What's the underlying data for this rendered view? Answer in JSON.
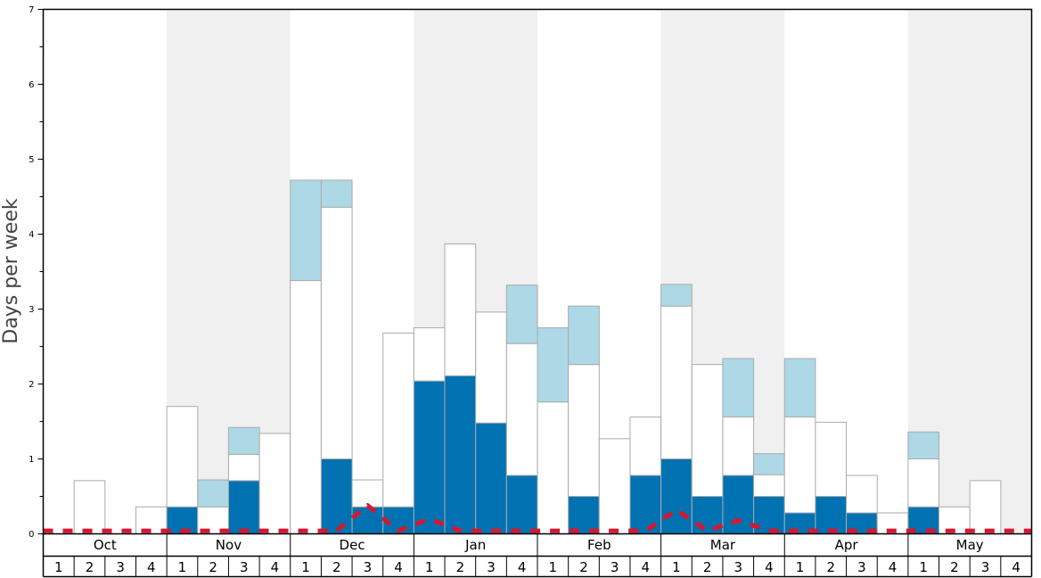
{
  "chart_data": {
    "type": "bar",
    "stacked": true,
    "ylabel": "Days per week",
    "ylim": [
      0,
      7
    ],
    "yticks": [
      "0",
      "1",
      "2",
      "3",
      "4",
      "5",
      "6",
      "7"
    ],
    "months": [
      "Oct",
      "Nov",
      "Dec",
      "Jan",
      "Feb",
      "Mar",
      "Apr",
      "May"
    ],
    "weeks": [
      "1",
      "2",
      "3",
      "4"
    ],
    "shaded_months": [
      "Nov",
      "Jan",
      "Mar",
      "May"
    ],
    "colors": {
      "dark": "#0072b2",
      "white": "#ffffff",
      "light": "#add8e6",
      "line": "#d7172f",
      "shade": "#f0f0f0",
      "stroke": "#aaaaaa"
    },
    "series": [
      {
        "key": "dark",
        "values": [
          0,
          0,
          0,
          0,
          0.36,
          0,
          0.71,
          0,
          0,
          1,
          0.36,
          0.36,
          2.04,
          2.11,
          1.48,
          0.78,
          0,
          0.5,
          0,
          0.78,
          1,
          0.5,
          0.78,
          0.5,
          0.28,
          0.5,
          0.28,
          0,
          0.36,
          0,
          0,
          0
        ]
      },
      {
        "key": "white",
        "values": [
          0,
          0.71,
          0,
          0.36,
          1.34,
          0.36,
          0.35,
          1.34,
          3.38,
          3.36,
          0.36,
          2.32,
          0.71,
          1.76,
          1.48,
          1.76,
          1.76,
          1.76,
          1.27,
          0.78,
          2.04,
          1.76,
          0.78,
          0.29,
          1.28,
          0.99,
          0.5,
          0.28,
          0.64,
          0.36,
          0.71,
          0
        ]
      },
      {
        "key": "light",
        "values": [
          0,
          0,
          0,
          0,
          0,
          0.36,
          0.36,
          0,
          1.34,
          0.36,
          0,
          0,
          0,
          0,
          0,
          0.78,
          0.99,
          0.78,
          0,
          0,
          0.29,
          0,
          0.78,
          0.28,
          0.78,
          0,
          0,
          0,
          0.36,
          0,
          0,
          0
        ]
      }
    ],
    "line": {
      "values": [
        0.04,
        0.04,
        0.04,
        0.04,
        0.04,
        0.04,
        0.04,
        0.04,
        0.04,
        0.04,
        0.38,
        0.04,
        0.2,
        0.04,
        0.04,
        0.04,
        0.04,
        0.04,
        0.04,
        0.04,
        0.32,
        0.04,
        0.18,
        0.04,
        0.04,
        0.04,
        0.04,
        0.04,
        0.04,
        0.04,
        0.04,
        0.04
      ]
    }
  }
}
